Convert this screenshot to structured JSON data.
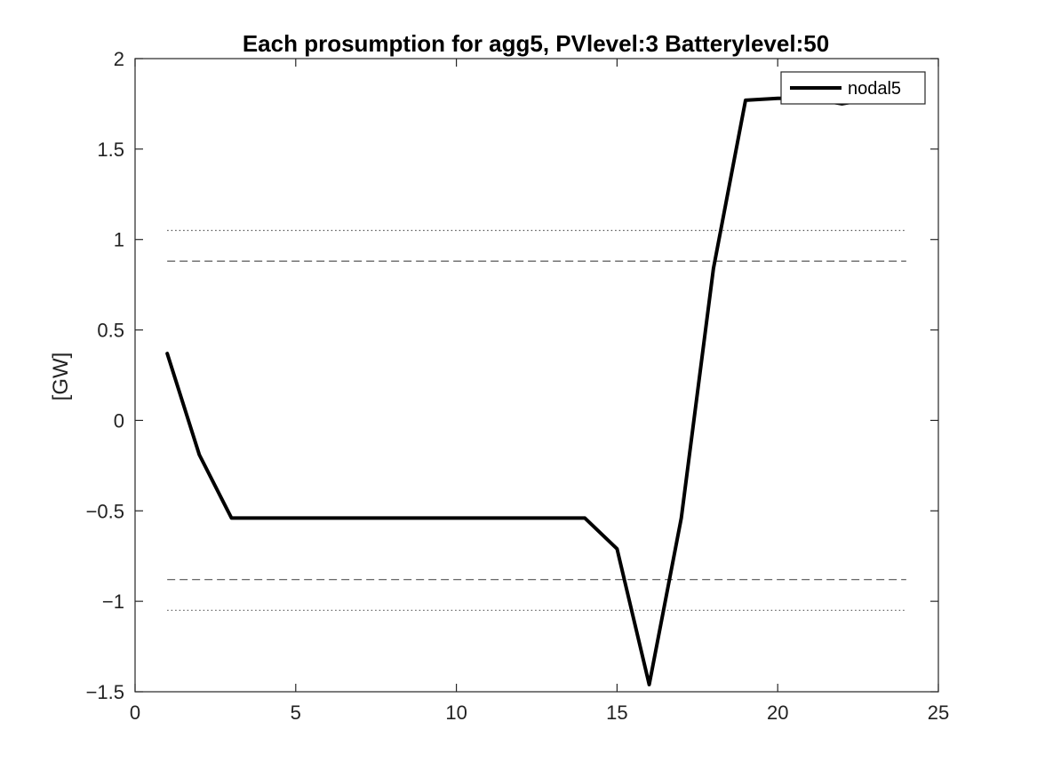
{
  "chart_data": {
    "type": "line",
    "title": "Each prosumption for agg5, PVlevel:3 Batterylevel:50",
    "xlabel": "",
    "ylabel": "[GW]",
    "xlim": [
      0,
      25
    ],
    "ylim": [
      -1.5,
      2
    ],
    "xticks": [
      0,
      5,
      10,
      15,
      20,
      25
    ],
    "yticks": [
      2,
      1.5,
      1,
      0.5,
      0,
      -0.5,
      -1,
      -1.5
    ],
    "xtick_labels": [
      "0",
      "5",
      "10",
      "15",
      "20",
      "25"
    ],
    "ytick_labels": [
      "2",
      "1.5",
      "1",
      "0.5",
      "0",
      "−0.5",
      "−1",
      "−1.5"
    ],
    "grid": false,
    "legend_position": "top-right",
    "series": [
      {
        "name": "nodal5",
        "color": "#000000",
        "style": "solid",
        "x": [
          1,
          2,
          3,
          4,
          5,
          6,
          7,
          8,
          9,
          10,
          11,
          12,
          13,
          14,
          15,
          16,
          17,
          18,
          19,
          20,
          21,
          22,
          23,
          24
        ],
        "y": [
          0.37,
          -0.19,
          -0.54,
          -0.54,
          -0.54,
          -0.54,
          -0.54,
          -0.54,
          -0.54,
          -0.54,
          -0.54,
          -0.54,
          -0.54,
          -0.54,
          -0.71,
          -1.46,
          -0.54,
          0.84,
          1.77,
          1.78,
          1.78,
          1.75,
          1.78,
          1.78
        ]
      }
    ],
    "reference_lines": [
      {
        "y": 1.05,
        "style": "dotted",
        "color": "#555555",
        "x": [
          1,
          24
        ]
      },
      {
        "y": 0.88,
        "style": "dashed",
        "color": "#555555",
        "x": [
          1,
          24
        ]
      },
      {
        "y": -0.88,
        "style": "dashed",
        "color": "#555555",
        "x": [
          1,
          24
        ]
      },
      {
        "y": -1.05,
        "style": "dotted",
        "color": "#555555",
        "x": [
          1,
          24
        ]
      }
    ]
  }
}
